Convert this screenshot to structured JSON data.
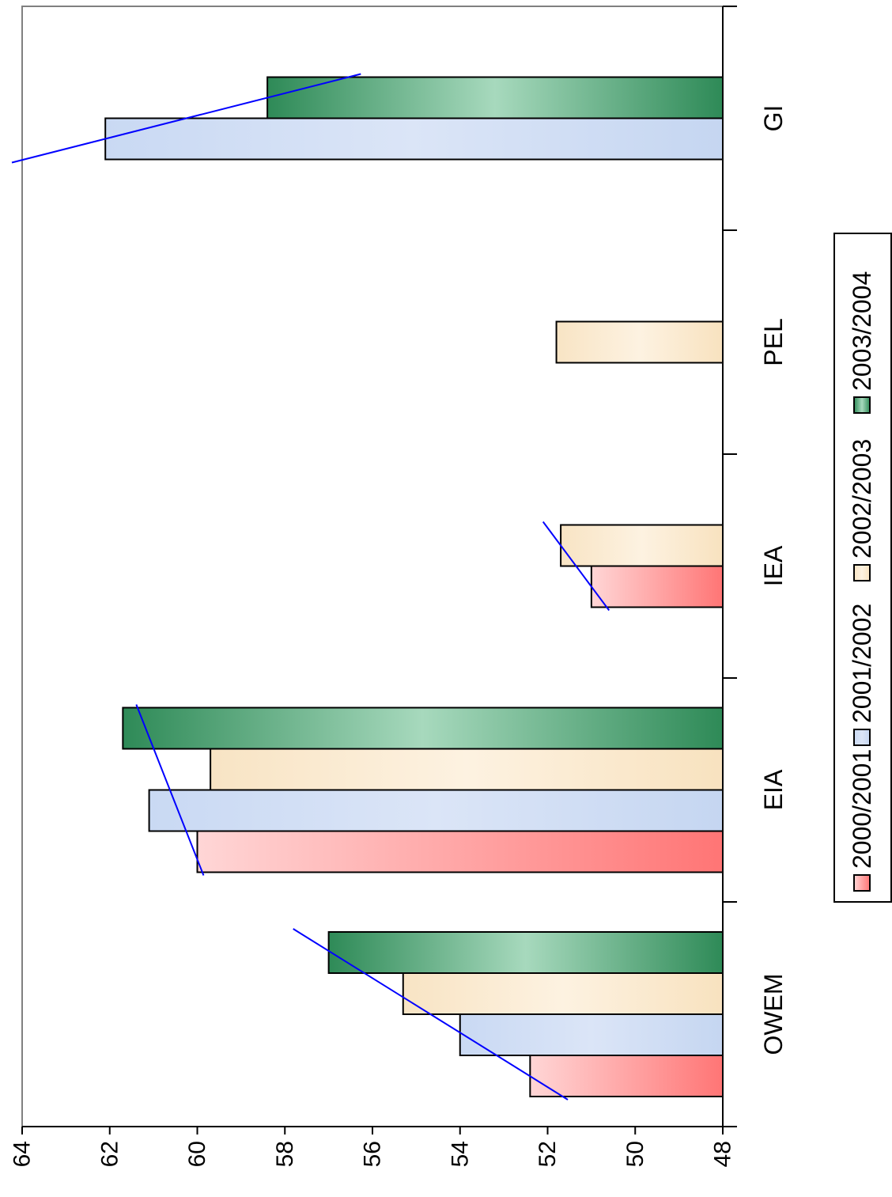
{
  "chart_data": {
    "type": "bar",
    "orientation": "rotated-90-clockwise",
    "categories": [
      "OWEM",
      "EIA",
      "IEA",
      "PEL",
      "GI"
    ],
    "series": [
      {
        "name": "2000/2001",
        "values": [
          52.4,
          60.0,
          51.0,
          null,
          null
        ],
        "color": "#ff7a7a"
      },
      {
        "name": "2001/2002",
        "values": [
          54.0,
          61.1,
          null,
          null,
          62.1
        ],
        "color": "#c7d8f2"
      },
      {
        "name": "2002/2003",
        "values": [
          55.3,
          59.7,
          51.7,
          51.8,
          null
        ],
        "color": "#fbe9c9"
      },
      {
        "name": "2003/2004",
        "values": [
          57.0,
          61.7,
          null,
          null,
          58.4
        ],
        "color": "#2e8b57"
      }
    ],
    "value_axis": {
      "min": 48,
      "max": 64,
      "ticks": [
        "48",
        "50",
        "52",
        "54",
        "56",
        "58",
        "60",
        "62",
        "64"
      ]
    },
    "title": "",
    "xlabel": "",
    "ylabel": "",
    "legend": {
      "position": "bottom",
      "entries": [
        "2000/2001",
        "2001/2002",
        "2002/2003",
        "2003/2004"
      ]
    },
    "trend_lines": {
      "color": "#0000ff",
      "groups": [
        "OWEM",
        "EIA",
        "IEA",
        "GI"
      ]
    },
    "grid": false
  }
}
